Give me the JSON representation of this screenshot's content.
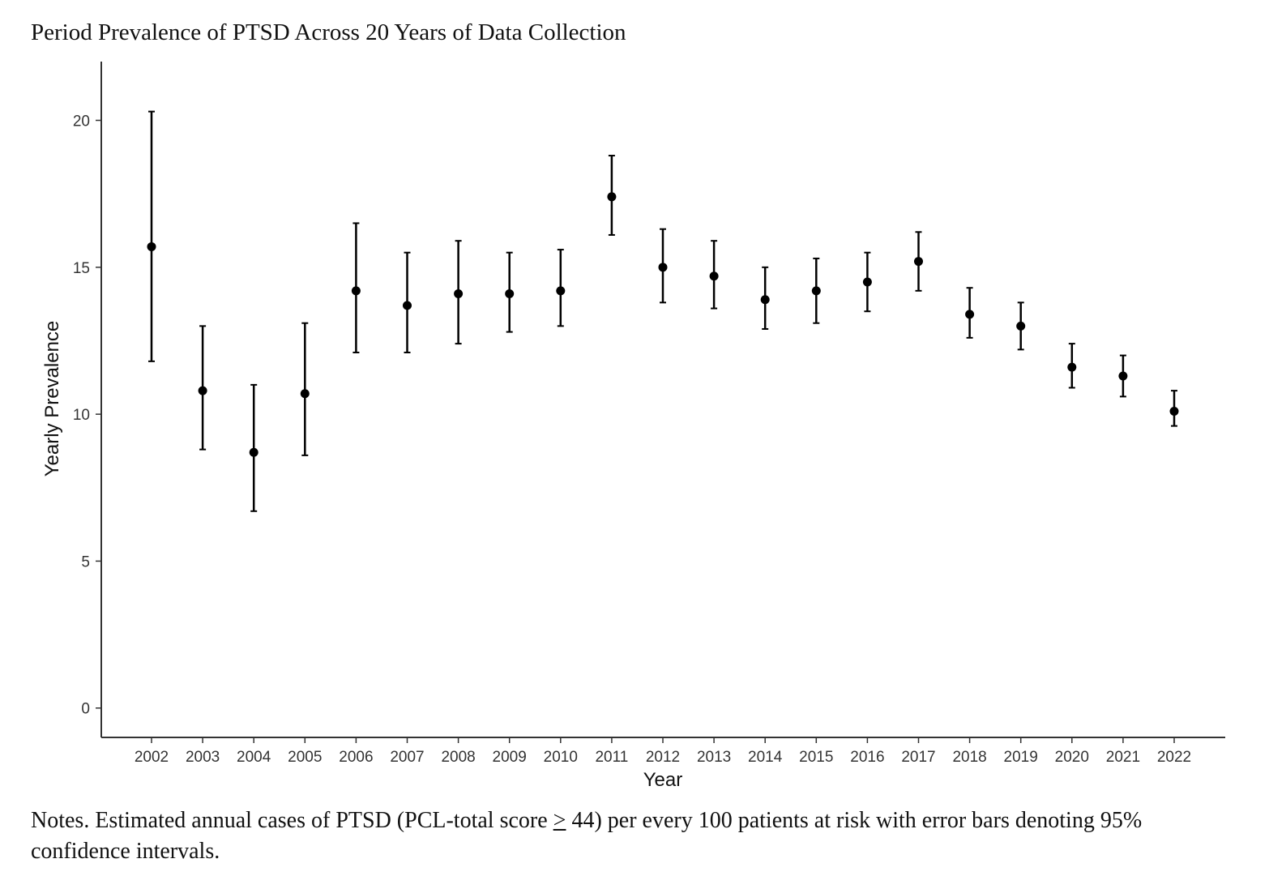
{
  "chart_data": {
    "type": "scatter",
    "title": "Period Prevalence of PTSD Across 20 Years of Data Collection",
    "xlabel": "Year",
    "ylabel": "Yearly Prevalence",
    "ylim": [
      -1,
      22
    ],
    "yticks": [
      0,
      5,
      10,
      15,
      20
    ],
    "grid": false,
    "categories": [
      "2002",
      "2003",
      "2004",
      "2005",
      "2006",
      "2007",
      "2008",
      "2009",
      "2010",
      "2011",
      "2012",
      "2013",
      "2014",
      "2015",
      "2016",
      "2017",
      "2018",
      "2019",
      "2020",
      "2021",
      "2022"
    ],
    "values": [
      15.7,
      10.8,
      8.7,
      10.7,
      14.2,
      13.7,
      14.1,
      14.1,
      14.2,
      17.4,
      15.0,
      14.7,
      13.9,
      14.2,
      14.5,
      15.2,
      13.4,
      13.0,
      11.6,
      11.3,
      10.1
    ],
    "error_low": [
      11.8,
      8.8,
      6.7,
      8.6,
      12.1,
      12.1,
      12.4,
      12.8,
      13.0,
      16.1,
      13.8,
      13.6,
      12.9,
      13.1,
      13.5,
      14.2,
      12.6,
      12.2,
      10.9,
      10.6,
      9.6
    ],
    "error_high": [
      20.3,
      13.0,
      11.0,
      13.1,
      16.5,
      15.5,
      15.9,
      15.5,
      15.6,
      18.8,
      16.3,
      15.9,
      15.0,
      15.3,
      15.5,
      16.2,
      14.3,
      13.8,
      12.4,
      12.0,
      10.8
    ]
  },
  "notes": {
    "prefix": "Notes. Estimated annual cases of PTSD (PCL-total score ",
    "symbol": ">",
    "suffix": " 44) per every 100 patients at risk with error bars denoting 95% confidence intervals."
  }
}
